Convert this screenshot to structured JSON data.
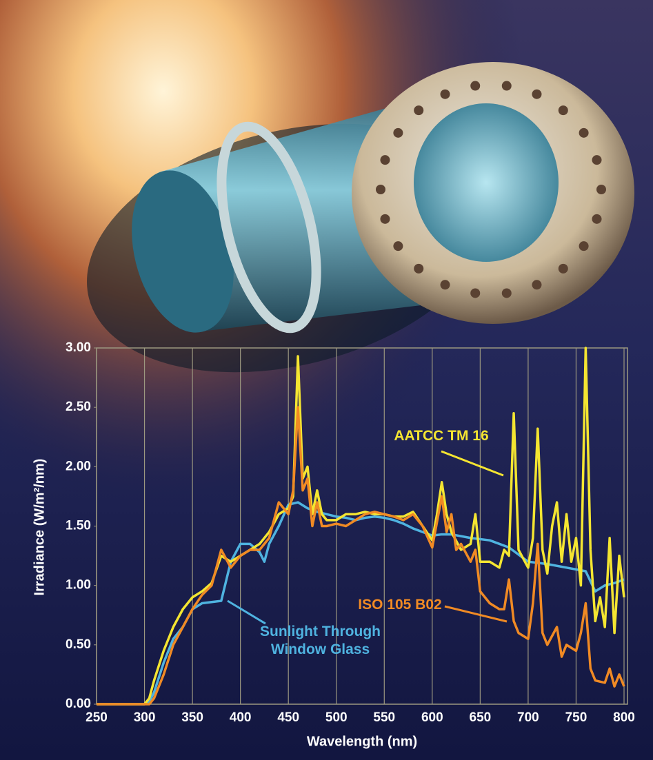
{
  "chart_data": {
    "type": "line",
    "xlabel": "Wavelength (nm)",
    "ylabel": "Irradiance (W/m²/nm)",
    "xlim": [
      250,
      800
    ],
    "ylim": [
      0,
      3
    ],
    "xticks": [
      250,
      300,
      350,
      400,
      450,
      500,
      550,
      600,
      650,
      700,
      750,
      800
    ],
    "yticks": [
      {
        "value": 0,
        "label": "0.00"
      },
      {
        "value": 0.5,
        "label": "0.50"
      },
      {
        "value": 1,
        "label": "1.00"
      },
      {
        "value": 1.5,
        "label": "1.50"
      },
      {
        "value": 2,
        "label": "2.00"
      },
      {
        "value": 2.5,
        "label": "2.50"
      },
      {
        "value": 3,
        "label": "3.00"
      }
    ],
    "grid": "x",
    "series": [
      {
        "name": "Sunlight Through Window Glass",
        "color": "#4fb3e0",
        "x": [
          250,
          300,
          305,
          310,
          320,
          330,
          340,
          350,
          360,
          370,
          380,
          390,
          400,
          410,
          420,
          425,
          430,
          440,
          450,
          460,
          470,
          480,
          490,
          500,
          510,
          520,
          530,
          540,
          550,
          560,
          570,
          580,
          590,
          600,
          610,
          620,
          640,
          660,
          680,
          700,
          720,
          740,
          760,
          770,
          780,
          790,
          800
        ],
        "values": [
          0,
          0,
          0.02,
          0.1,
          0.35,
          0.55,
          0.65,
          0.8,
          0.85,
          0.86,
          0.87,
          1.2,
          1.35,
          1.35,
          1.28,
          1.2,
          1.35,
          1.5,
          1.68,
          1.7,
          1.65,
          1.62,
          1.6,
          1.58,
          1.57,
          1.55,
          1.57,
          1.58,
          1.57,
          1.55,
          1.52,
          1.48,
          1.45,
          1.42,
          1.43,
          1.43,
          1.4,
          1.38,
          1.32,
          1.2,
          1.18,
          1.15,
          1.12,
          0.95,
          1.0,
          1.02,
          1.05
        ]
      },
      {
        "name": "AATCC TM 16",
        "color": "#f4e531",
        "x": [
          250,
          300,
          305,
          310,
          320,
          330,
          340,
          350,
          360,
          370,
          380,
          390,
          400,
          410,
          420,
          430,
          440,
          450,
          455,
          460,
          465,
          470,
          475,
          480,
          485,
          490,
          500,
          510,
          520,
          530,
          540,
          550,
          560,
          570,
          580,
          590,
          600,
          605,
          610,
          615,
          620,
          630,
          640,
          645,
          650,
          660,
          670,
          675,
          680,
          685,
          690,
          700,
          705,
          710,
          715,
          720,
          725,
          730,
          735,
          740,
          745,
          750,
          755,
          760,
          765,
          770,
          775,
          780,
          785,
          790,
          795,
          800
        ],
        "values": [
          0,
          0,
          0.05,
          0.2,
          0.45,
          0.65,
          0.8,
          0.9,
          0.95,
          1.02,
          1.25,
          1.2,
          1.25,
          1.3,
          1.35,
          1.45,
          1.6,
          1.65,
          1.75,
          2.93,
          1.9,
          2.0,
          1.6,
          1.8,
          1.6,
          1.55,
          1.55,
          1.6,
          1.6,
          1.62,
          1.6,
          1.6,
          1.58,
          1.58,
          1.62,
          1.5,
          1.38,
          1.6,
          1.87,
          1.6,
          1.45,
          1.3,
          1.35,
          1.6,
          1.2,
          1.2,
          1.15,
          1.3,
          1.25,
          2.45,
          1.3,
          1.15,
          1.4,
          2.32,
          1.3,
          1.1,
          1.5,
          1.7,
          1.2,
          1.6,
          1.2,
          1.4,
          1.0,
          3.0,
          1.3,
          0.7,
          0.9,
          0.65,
          1.4,
          0.6,
          1.25,
          0.9
        ]
      },
      {
        "name": "ISO 105 B02",
        "color": "#f08a24",
        "x": [
          250,
          305,
          310,
          320,
          330,
          340,
          350,
          360,
          370,
          380,
          390,
          400,
          410,
          420,
          430,
          440,
          450,
          455,
          460,
          465,
          470,
          475,
          480,
          485,
          490,
          500,
          510,
          520,
          530,
          540,
          550,
          560,
          570,
          580,
          590,
          600,
          610,
          615,
          620,
          625,
          630,
          640,
          645,
          650,
          660,
          670,
          675,
          680,
          685,
          690,
          700,
          705,
          710,
          715,
          720,
          730,
          735,
          740,
          750,
          755,
          760,
          765,
          770,
          780,
          785,
          790,
          795,
          800
        ],
        "values": [
          0,
          0,
          0.05,
          0.25,
          0.5,
          0.65,
          0.8,
          0.92,
          1.0,
          1.3,
          1.15,
          1.25,
          1.3,
          1.3,
          1.4,
          1.7,
          1.6,
          1.8,
          2.5,
          1.8,
          1.9,
          1.5,
          1.7,
          1.5,
          1.5,
          1.52,
          1.5,
          1.55,
          1.6,
          1.62,
          1.6,
          1.58,
          1.55,
          1.6,
          1.5,
          1.32,
          1.75,
          1.45,
          1.6,
          1.3,
          1.35,
          1.2,
          1.3,
          0.95,
          0.85,
          0.8,
          0.8,
          1.05,
          0.7,
          0.6,
          0.55,
          0.85,
          1.35,
          0.6,
          0.5,
          0.65,
          0.4,
          0.5,
          0.45,
          0.6,
          0.85,
          0.3,
          0.2,
          0.18,
          0.3,
          0.15,
          0.25,
          0.15
        ]
      }
    ]
  }
}
